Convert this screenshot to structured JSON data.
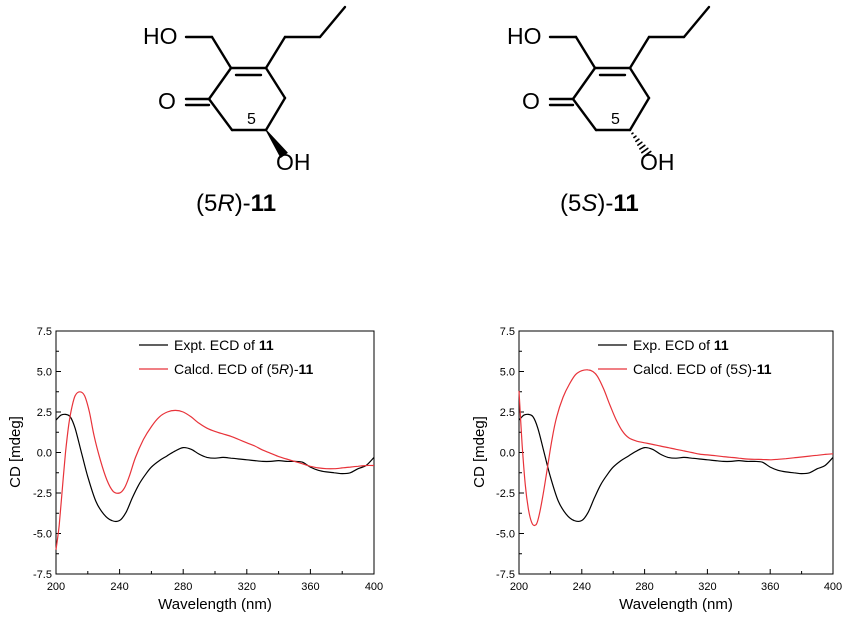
{
  "structures": [
    {
      "atom_ho": "HO",
      "atom_o": "O",
      "atom_oh": "OH",
      "ring_number": "5",
      "label_prefix": "(5",
      "label_config": "R",
      "label_close": ")-",
      "label_number": "11",
      "stereo_bond": "wedge"
    },
    {
      "atom_ho": "HO",
      "atom_o": "O",
      "atom_oh": "OH",
      "ring_number": "5",
      "label_prefix": "(5",
      "label_config": "S",
      "label_close": ")-",
      "label_number": "11",
      "stereo_bond": "hash"
    }
  ],
  "chart_data": [
    {
      "type": "line",
      "xlabel": "Wavelength (nm)",
      "ylabel": "CD [mdeg]",
      "xlim": [
        200,
        400
      ],
      "ylim": [
        -7.5,
        7.5
      ],
      "x_ticks": [
        "200",
        "240",
        "280",
        "320",
        "360",
        "400"
      ],
      "y_ticks": [
        "7.5",
        "5.0",
        "2.5",
        "0.0",
        "-2.5",
        "-5.0",
        "-7.5"
      ],
      "legend_position": "top-right",
      "series": [
        {
          "name": "Expt. ECD of 11",
          "legend_plain": "Expt. ECD of ",
          "legend_bold": "11",
          "color": "#000000",
          "x": [
            200,
            203,
            206,
            209,
            212,
            216,
            220,
            225,
            230,
            235,
            240,
            244,
            248,
            252,
            256,
            260,
            265,
            270,
            275,
            280,
            285,
            290,
            295,
            300,
            305,
            310,
            315,
            320,
            325,
            330,
            335,
            340,
            345,
            350,
            355,
            360,
            365,
            370,
            375,
            380,
            385,
            390,
            395,
            400
          ],
          "y": [
            2.0,
            2.3,
            2.35,
            2.2,
            1.5,
            0.0,
            -1.5,
            -3.0,
            -3.8,
            -4.2,
            -4.2,
            -3.7,
            -2.8,
            -2.0,
            -1.4,
            -0.9,
            -0.5,
            -0.2,
            0.1,
            0.3,
            0.2,
            -0.1,
            -0.3,
            -0.35,
            -0.3,
            -0.35,
            -0.4,
            -0.45,
            -0.5,
            -0.55,
            -0.55,
            -0.5,
            -0.55,
            -0.55,
            -0.6,
            -0.9,
            -1.1,
            -1.2,
            -1.25,
            -1.3,
            -1.25,
            -1.0,
            -0.8,
            -0.3
          ]
        },
        {
          "name": "Calcd. ECD of (5R)-11",
          "legend_plain": "Calcd. ECD of (5",
          "legend_italic": "R",
          "legend_close": ")-",
          "legend_bold": "11",
          "color": "#e8333a",
          "x": [
            200,
            202,
            204,
            206,
            208,
            210,
            212,
            215,
            218,
            221,
            224,
            228,
            232,
            236,
            240,
            243,
            246,
            250,
            255,
            260,
            265,
            270,
            275,
            280,
            285,
            290,
            295,
            300,
            305,
            310,
            315,
            320,
            325,
            330,
            335,
            340,
            345,
            350,
            355,
            360,
            365,
            370,
            375,
            380,
            385,
            390,
            395,
            400
          ],
          "y": [
            -6.0,
            -4.5,
            -2.2,
            0.0,
            1.7,
            2.8,
            3.5,
            3.75,
            3.5,
            2.5,
            1.0,
            -0.5,
            -1.7,
            -2.4,
            -2.5,
            -2.2,
            -1.5,
            -0.3,
            0.8,
            1.6,
            2.2,
            2.5,
            2.6,
            2.5,
            2.2,
            1.8,
            1.5,
            1.3,
            1.15,
            1.0,
            0.8,
            0.6,
            0.4,
            0.15,
            -0.05,
            -0.25,
            -0.4,
            -0.55,
            -0.7,
            -0.85,
            -0.95,
            -1.0,
            -1.0,
            -0.95,
            -0.9,
            -0.85,
            -0.8,
            -0.8
          ]
        }
      ]
    },
    {
      "type": "line",
      "xlabel": "Wavelength (nm)",
      "ylabel": "CD [mdeg]",
      "xlim": [
        200,
        400
      ],
      "ylim": [
        -7.5,
        7.5
      ],
      "x_ticks": [
        "200",
        "240",
        "280",
        "320",
        "360",
        "400"
      ],
      "y_ticks": [
        "7.5",
        "5.0",
        "2.5",
        "0.0",
        "-2.5",
        "-5.0",
        "-7.5"
      ],
      "legend_position": "top-right",
      "series": [
        {
          "name": "Exp. ECD of 11",
          "legend_plain": "Exp. ECD of ",
          "legend_bold": "11",
          "color": "#000000",
          "x": [
            200,
            203,
            206,
            209,
            212,
            216,
            220,
            225,
            230,
            235,
            240,
            244,
            248,
            252,
            256,
            260,
            265,
            270,
            275,
            280,
            285,
            290,
            295,
            300,
            305,
            310,
            315,
            320,
            325,
            330,
            335,
            340,
            345,
            350,
            355,
            360,
            365,
            370,
            375,
            380,
            385,
            390,
            395,
            400
          ],
          "y": [
            2.0,
            2.3,
            2.35,
            2.2,
            1.5,
            0.0,
            -1.5,
            -3.0,
            -3.8,
            -4.2,
            -4.2,
            -3.7,
            -2.8,
            -2.0,
            -1.4,
            -0.9,
            -0.5,
            -0.2,
            0.1,
            0.3,
            0.2,
            -0.1,
            -0.3,
            -0.35,
            -0.3,
            -0.35,
            -0.4,
            -0.45,
            -0.5,
            -0.55,
            -0.55,
            -0.5,
            -0.55,
            -0.55,
            -0.6,
            -0.9,
            -1.1,
            -1.2,
            -1.25,
            -1.3,
            -1.25,
            -1.0,
            -0.8,
            -0.3
          ]
        },
        {
          "name": "Calcd. ECD of (5S)-11",
          "legend_plain": "Calcd. ECD of (5",
          "legend_italic": "S",
          "legend_close": ")-",
          "legend_bold": "11",
          "color": "#e8333a",
          "x": [
            200,
            202,
            204,
            206,
            208,
            210,
            212,
            215,
            218,
            221,
            224,
            228,
            232,
            236,
            240,
            244,
            247,
            250,
            254,
            258,
            262,
            266,
            270,
            275,
            280,
            285,
            290,
            295,
            300,
            305,
            310,
            315,
            320,
            325,
            330,
            335,
            340,
            345,
            350,
            355,
            360,
            365,
            370,
            375,
            380,
            385,
            390,
            395,
            400
          ],
          "y": [
            3.8,
            0.5,
            -2.0,
            -3.5,
            -4.3,
            -4.5,
            -4.2,
            -2.8,
            -1.0,
            0.8,
            2.2,
            3.4,
            4.2,
            4.8,
            5.05,
            5.1,
            5.0,
            4.7,
            3.9,
            2.9,
            2.0,
            1.3,
            0.9,
            0.7,
            0.6,
            0.5,
            0.4,
            0.3,
            0.2,
            0.1,
            0.0,
            -0.1,
            -0.15,
            -0.2,
            -0.25,
            -0.3,
            -0.35,
            -0.4,
            -0.42,
            -0.43,
            -0.45,
            -0.42,
            -0.38,
            -0.33,
            -0.28,
            -0.22,
            -0.17,
            -0.12,
            -0.08
          ]
        }
      ]
    }
  ]
}
